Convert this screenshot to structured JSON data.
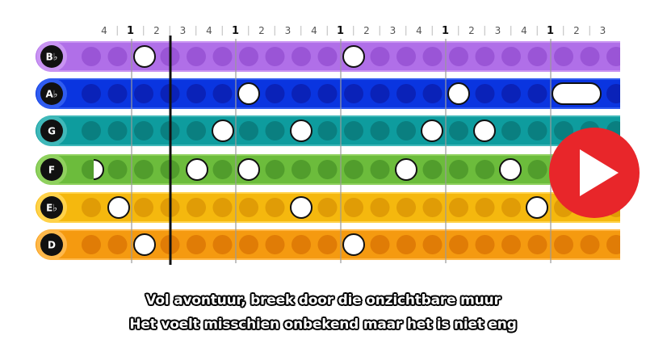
{
  "beat_ruler": [
    "4",
    "1",
    "2",
    "3",
    "4",
    "1",
    "2",
    "3",
    "4",
    "1",
    "2",
    "3",
    "4",
    "1",
    "2",
    "3",
    "4",
    "1",
    "2",
    "3"
  ],
  "lanes": [
    {
      "label": "B♭",
      "color": "#b06fe8",
      "dot": "#9a55d6",
      "edge": "#c994f2"
    },
    {
      "label": "A♭",
      "color": "#0a35e0",
      "dot": "#0a22b8",
      "edge": "#2f5cf0"
    },
    {
      "label": "G",
      "color": "#0e9c9e",
      "dot": "#0a7f80",
      "edge": "#3fb8b9"
    },
    {
      "label": "F",
      "color": "#6cbc3c",
      "dot": "#519d2c",
      "edge": "#8fd15e"
    },
    {
      "label": "E♭",
      "color": "#f5b80e",
      "dot": "#e09c06",
      "edge": "#ffd24a"
    },
    {
      "label": "D",
      "color": "#f59a10",
      "dot": "#e07c06",
      "edge": "#ffb84a"
    }
  ],
  "lyrics": {
    "line1": "Vol avontuur, breek door die onzichtbare muur",
    "line2": "Het voelt misschien onbekend maar het is niet eng"
  },
  "play_icon": "play-icon",
  "accent_play": "#e8262a"
}
